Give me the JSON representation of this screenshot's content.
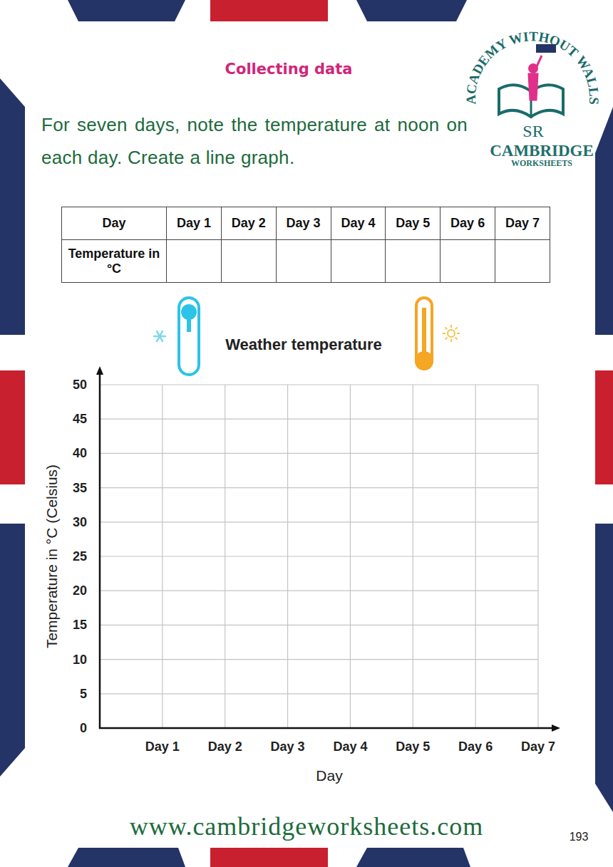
{
  "header": {
    "title": "Collecting data"
  },
  "instruction": "For seven days, note the temperature at noon on each day. Create a line graph.",
  "logo": {
    "arc_text": "ACADEMY WITHOUT WALLS",
    "initials": "SR",
    "name": "CAMBRIDGE",
    "subtitle": "WORKSHEETS"
  },
  "table": {
    "header": [
      "Day",
      "Day 1",
      "Day 2",
      "Day 3",
      "Day 4",
      "Day 5",
      "Day 6",
      "Day 7"
    ],
    "row_label": "Temperature in °C"
  },
  "chart_data": {
    "type": "line",
    "title": "Weather temperature",
    "x_label": "Day",
    "y_label": "Temperature in °C (Celsius)",
    "categories": [
      "Day 1",
      "Day 2",
      "Day 3",
      "Day 4",
      "Day 5",
      "Day 6",
      "Day 7"
    ],
    "values": [
      null,
      null,
      null,
      null,
      null,
      null,
      null
    ],
    "ylim": [
      0,
      50
    ],
    "yticks": [
      0,
      5,
      10,
      15,
      20,
      25,
      30,
      35,
      40,
      45,
      50
    ],
    "grid": true
  },
  "footer": {
    "url": "www.cambridgeworksheets.com",
    "page_number": "193"
  }
}
